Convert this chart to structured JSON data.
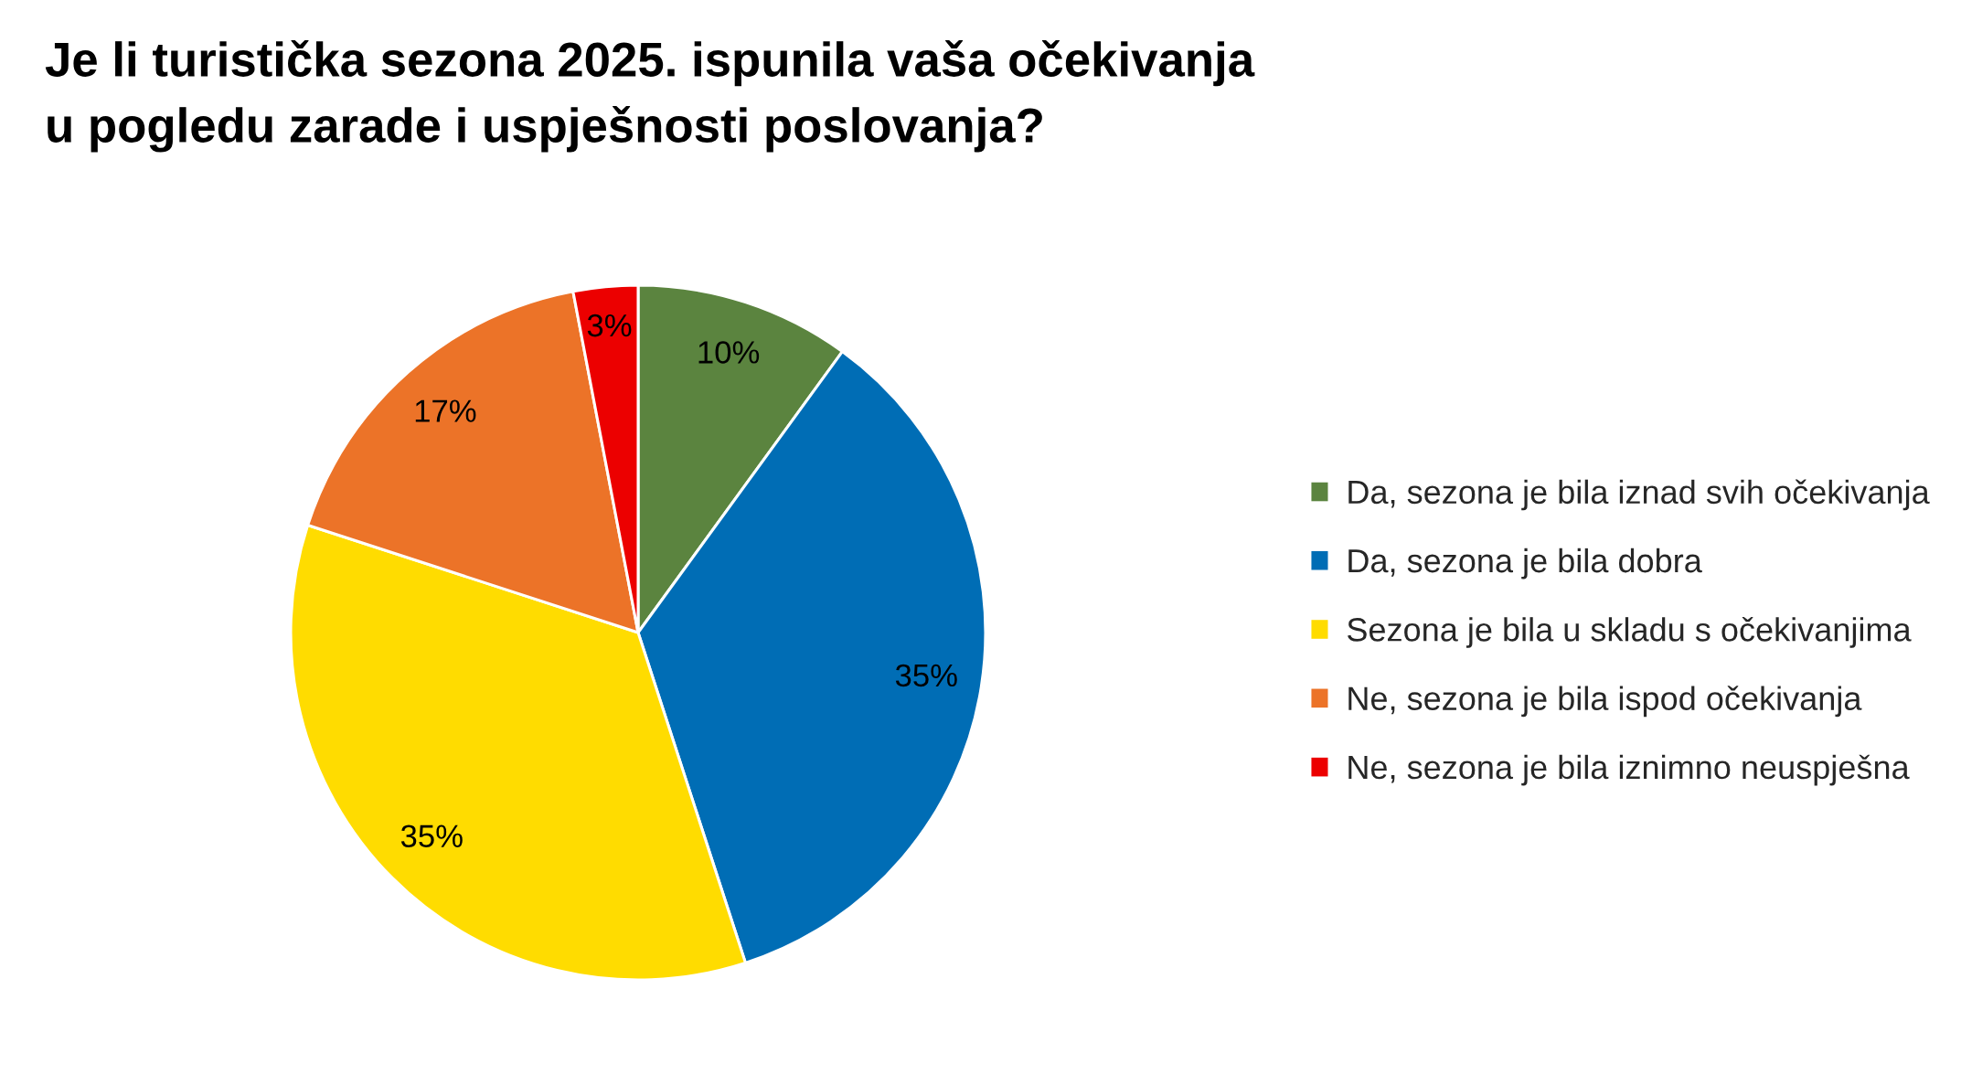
{
  "chart_data": {
    "type": "pie",
    "title": "Je li turistička sezona 2025. ispunila vaša očekivanja\nu pogledu zarade i uspješnosti poslovanja?",
    "categories": [
      "Da, sezona je bila iznad svih očekivanja",
      "Da, sezona je bila dobra",
      "Sezona je bila u skladu s očekivanjima",
      "Ne, sezona je bila ispod očekivanja",
      "Ne, sezona je bila iznimno neuspješna"
    ],
    "values": [
      10,
      35,
      35,
      17,
      3
    ],
    "value_labels": [
      "10%",
      "35%",
      "35%",
      "17%",
      "3%"
    ],
    "colors": [
      "#5b843f",
      "#006db5",
      "#ffdc00",
      "#ec7328",
      "#ec0000"
    ],
    "legend": "right"
  }
}
